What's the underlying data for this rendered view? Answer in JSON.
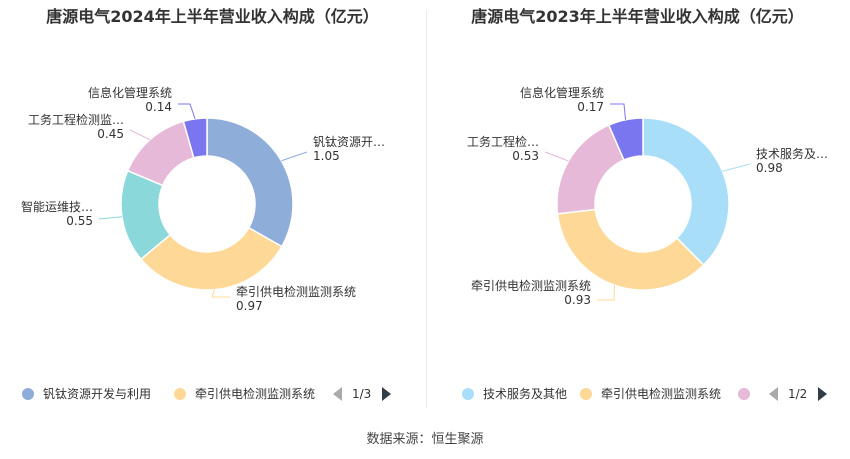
{
  "source": "数据来源：恒生聚源",
  "chart_data": [
    {
      "type": "pie",
      "variant": "donut",
      "title": "唐源电气2024年上半年营业收入构成（亿元）",
      "unit": "亿元",
      "slices": [
        {
          "name": "钒钛资源开发与利用",
          "label": "钒钛资源开…",
          "value": 1.05,
          "color": "#8eadd9"
        },
        {
          "name": "牵引供电检测监测系统",
          "label": "牵引供电检测监测系统",
          "value": 0.97,
          "color": "#fed896"
        },
        {
          "name": "智能运维技术",
          "label": "智能运维技…",
          "value": 0.55,
          "color": "#8ad8da"
        },
        {
          "name": "工务工程检测监测系统",
          "label": "工务工程检测监…",
          "value": 0.45,
          "color": "#e6b9d8"
        },
        {
          "name": "信息化管理系统",
          "label": "信息化管理系统",
          "value": 0.14,
          "color": "#7a76f0"
        }
      ],
      "legend": {
        "placement": "bottom-left",
        "visible_items": [
          {
            "label": "钒钛资源开发与利用",
            "color": "#8eadd9"
          },
          {
            "label": "牵引供电检测监测系统",
            "color": "#fed896"
          }
        ],
        "page": "1/3"
      }
    },
    {
      "type": "pie",
      "variant": "donut",
      "title": "唐源电气2023年上半年营业收入构成（亿元）",
      "unit": "亿元",
      "slices": [
        {
          "name": "技术服务及其他",
          "label": "技术服务及…",
          "value": 0.98,
          "color": "#a8def8"
        },
        {
          "name": "牵引供电检测监测系统",
          "label": "牵引供电检测监测系统",
          "value": 0.93,
          "color": "#fed896"
        },
        {
          "name": "工务工程检测监测系统",
          "label": "工务工程检…",
          "value": 0.53,
          "color": "#e6b9d8"
        },
        {
          "name": "信息化管理系统",
          "label": "信息化管理系统",
          "value": 0.17,
          "color": "#7a76f0"
        }
      ],
      "legend": {
        "placement": "bottom-left",
        "visible_items": [
          {
            "label": "技术服务及其他",
            "color": "#a8def8"
          },
          {
            "label": "牵引供电检测监测系统",
            "color": "#fed896"
          },
          {
            "label": "",
            "color": "#e6b9d8"
          }
        ],
        "page": "1/2"
      }
    }
  ]
}
